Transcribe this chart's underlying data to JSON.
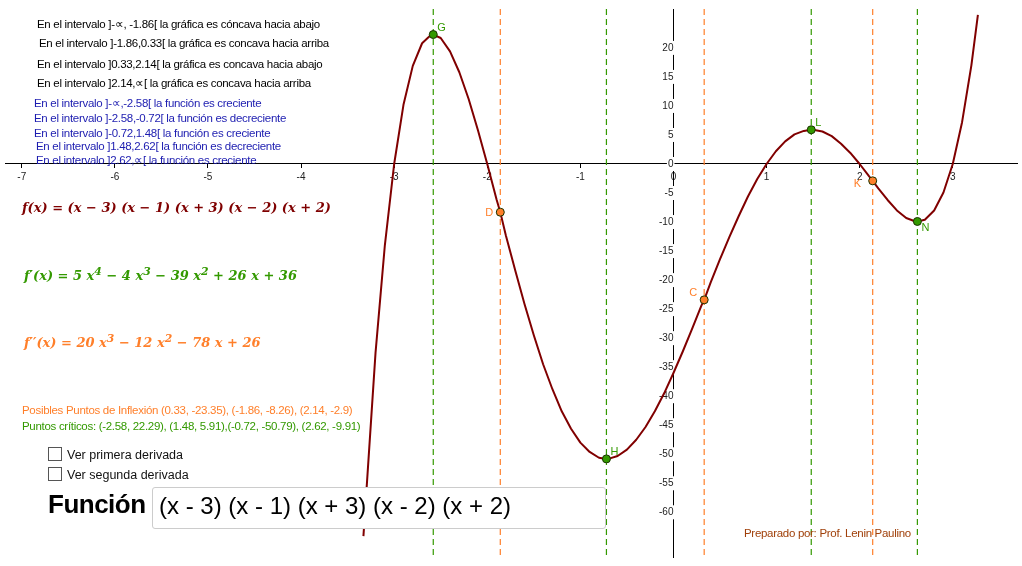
{
  "chart_data": {
    "type": "line",
    "xlim": [
      -7.18,
      3.69
    ],
    "ylim": [
      -67.7,
      26.7
    ],
    "xticks": [
      -7,
      -6,
      -5,
      -4,
      -3,
      -2,
      -1,
      0,
      1,
      2,
      3
    ],
    "yticks": [
      -60,
      -55,
      -50,
      -45,
      -40,
      -35,
      -30,
      -25,
      -20,
      -15,
      -10,
      -5,
      0,
      5,
      10,
      15,
      20
    ],
    "grid": false,
    "legend": false,
    "marker": "circle",
    "series": [
      {
        "color": "#800000",
        "marker": "none",
        "x": [
          -3.33,
          -3.2,
          -3.1,
          -3.0,
          -2.9,
          -2.8,
          -2.7,
          -2.6,
          -2.58,
          -2.5,
          -2.4,
          -2.3,
          -2.2,
          -2.1,
          -2.0,
          -1.9,
          -1.86,
          -1.8,
          -1.7,
          -1.6,
          -1.5,
          -1.4,
          -1.3,
          -1.2,
          -1.1,
          -1.0,
          -0.9,
          -0.8,
          -0.72,
          -0.7,
          -0.6,
          -0.5,
          -0.4,
          -0.3,
          -0.2,
          -0.1,
          0,
          0.1,
          0.2,
          0.3,
          0.33,
          0.4,
          0.5,
          0.6,
          0.7,
          0.8,
          0.9,
          1.0,
          1.1,
          1.2,
          1.3,
          1.4,
          1.48,
          1.5,
          1.6,
          1.7,
          1.8,
          1.9,
          2.0,
          2.1,
          2.14,
          2.2,
          2.3,
          2.4,
          2.5,
          2.6,
          2.62,
          2.7,
          2.8,
          2.9,
          3.0,
          3.1,
          3.2,
          3.27
        ],
        "values": [
          -64.1,
          -32.5,
          -14,
          0,
          10.2,
          16.9,
          20.8,
          22.3,
          22.3,
          21.7,
          19.4,
          15.8,
          11.2,
          5.8,
          0,
          -6.1,
          -8.3,
          -12.3,
          -18.3,
          -24.1,
          -29.5,
          -34.5,
          -38.8,
          -42.6,
          -45.6,
          -48,
          -49.6,
          -50.6,
          -50.8,
          -50.8,
          -50.3,
          -49.2,
          -47.5,
          -45.3,
          -42.6,
          -39.5,
          -36,
          -32.3,
          -28.4,
          -24.4,
          -23.4,
          -20.4,
          -16.4,
          -12.6,
          -9,
          -5.6,
          -2.6,
          0,
          2.2,
          3.9,
          5.1,
          5.7,
          5.9,
          5.9,
          5.6,
          4.8,
          3.5,
          1.9,
          0,
          -2.1,
          -2.9,
          -4.2,
          -6.2,
          -8,
          -9.3,
          -9.9,
          -9.9,
          -9.6,
          -8,
          -4.9,
          0,
          7.2,
          17,
          25.7
        ]
      },
      {
        "type": "scatter",
        "color": "#339900",
        "x": [
          -2.58,
          -0.72,
          1.48,
          2.62
        ],
        "values": [
          22.3,
          -50.8,
          5.9,
          -9.9
        ]
      },
      {
        "type": "scatter",
        "color": "#ff7f2a",
        "x": [
          -1.86,
          0.33,
          2.14
        ],
        "values": [
          -8.3,
          -23.4,
          -2.9
        ]
      }
    ],
    "ref_lines": [
      {
        "axis": "x",
        "value": -2.58,
        "color": "#339900",
        "line_style": "dashed"
      },
      {
        "axis": "x",
        "value": -0.72,
        "color": "#339900",
        "line_style": "dashed"
      },
      {
        "axis": "x",
        "value": 1.48,
        "color": "#339900",
        "line_style": "dashed"
      },
      {
        "axis": "x",
        "value": 2.62,
        "color": "#339900",
        "line_style": "dashed"
      },
      {
        "axis": "x",
        "value": -1.86,
        "color": "#ff7f2a",
        "line_style": "dashed"
      },
      {
        "axis": "x",
        "value": 0.33,
        "color": "#ff7f2a",
        "line_style": "dashed"
      },
      {
        "axis": "x",
        "value": 2.14,
        "color": "#ff7f2a",
        "line_style": "dashed"
      }
    ],
    "annotations": [
      "En el intervalo ]-∝, -1.86[ la gráfica es cóncava hacia abajo",
      "En el intervalo ]-1.86,0.33[ la gráfica es concava hacia arriba",
      "En el intervalo ]0.33,2.14[ la gráfica es concava hacia abajo",
      "En el intervalo ]2.14,∝[ la gráfica es concava hacia arriba",
      "En el intervalo ]-∝,-2.58[ la función es creciente",
      "En el intervalo ]-2.58,-0.72[ la función es decreciente",
      "En el intervalo ]-0.72,1.48[ la función es creciente",
      "En el intervalo ]1.48,2.62[ la función es decreciente",
      "En el intervalo ]2.62,∝[ la función es creciente",
      "f(x) = (x − 3)  (x − 1)  (x + 3)  (x − 2)  (x + 2)",
      "f′(x) = 5 x$^{4}$ − 4 x$^{3}$ − 39 x$^{2}$ + 26 x + 36",
      "f′′(x) = 20 x$^{3}$ − 12 x$^{2}$ − 78 x + 26",
      "Posibles Puntos de Inflexión (0.33, -23.35), (-1.86, -8.26), (2.14, -2.9)",
      "Puntos críticos: (-2.58, 22.29), (1.48, 5.91),(-0.72, -50.79), (2.62, -9.91)",
      "Ver primera derivada",
      "Ver segunda derivada",
      "Función",
      "(x - 3) (x - 1) (x + 3) (x - 2) (x + 2)",
      "Preparado por: Prof. Lenin Paulino",
      {
        "text": "G",
        "x": -2.58,
        "y": 22.3
      },
      {
        "text": "H",
        "x": -0.72,
        "y": -50.8
      },
      {
        "text": "L",
        "x": 1.48,
        "y": 5.9
      },
      {
        "text": "N",
        "x": 2.62,
        "y": -9.9
      },
      {
        "text": "D",
        "x": -1.86,
        "y": -8.3
      },
      {
        "text": "C",
        "x": 0.33,
        "y": -23.4
      },
      {
        "text": "K",
        "x": 2.14,
        "y": -2.9
      }
    ]
  }
}
